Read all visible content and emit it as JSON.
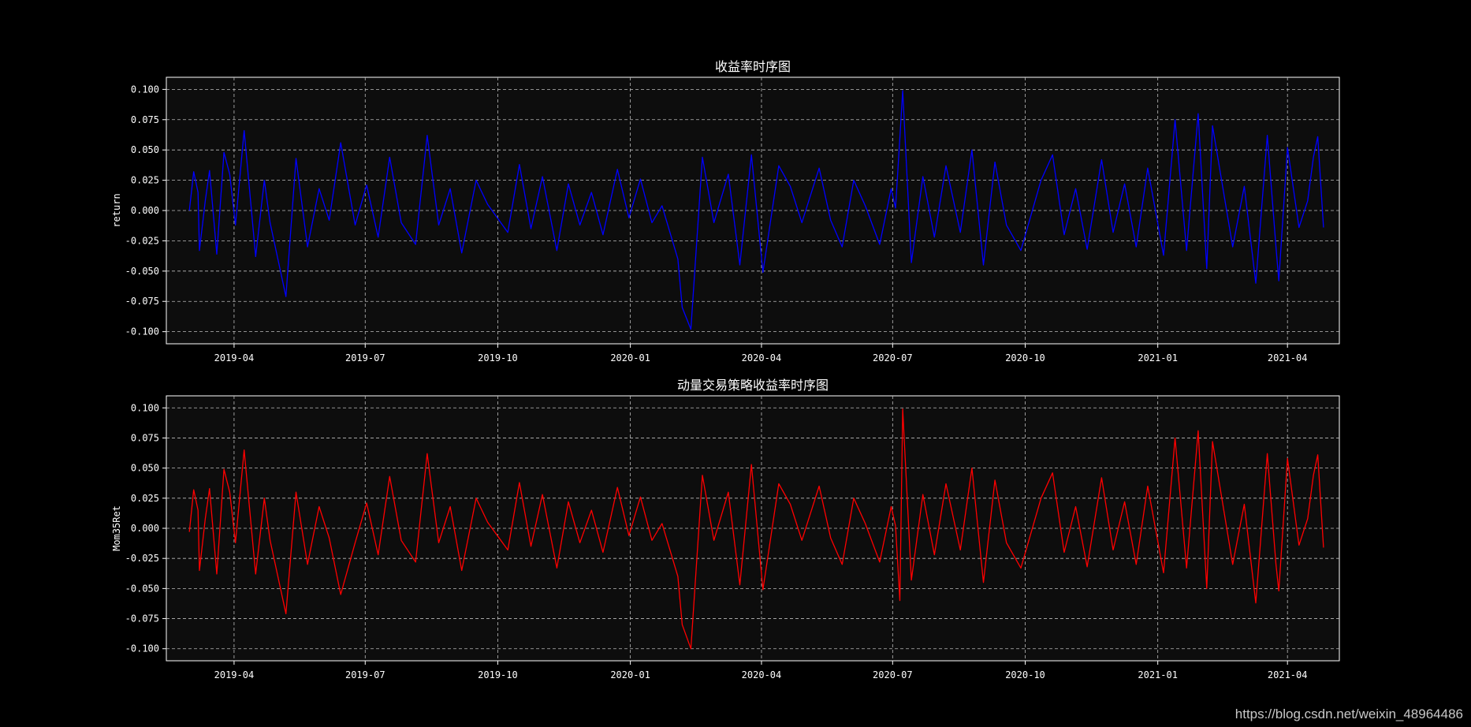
{
  "colors": {
    "background": "#000000",
    "plot_bg": "#0d0d0d",
    "text": "#ffffff",
    "grid": "#bdbdbd",
    "return": "#0000ff",
    "mom": "#ff0000"
  },
  "watermark": "https://blog.csdn.net/weixin_48964486",
  "chart_data": [
    {
      "type": "line",
      "title": "收益率时序图",
      "xlabel": "",
      "ylabel": "return",
      "ylim": [
        -0.11,
        0.11
      ],
      "yticks": [
        "0.100",
        "0.075",
        "0.050",
        "0.025",
        "0.000",
        "-0.025",
        "-0.050",
        "-0.075",
        "-0.100"
      ],
      "xticks": [
        "2019-04",
        "2019-07",
        "2019-10",
        "2020-01",
        "2020-04",
        "2020-07",
        "2020-10",
        "2021-01",
        "2021-04"
      ],
      "xlim": [
        "2019-02-13",
        "2021-05-07"
      ],
      "grid": true,
      "series": [
        {
          "color": "#0000ff",
          "x": [
            "2019-03-01",
            "2019-03-04",
            "2019-03-07",
            "2019-03-08",
            "2019-03-12",
            "2019-03-15",
            "2019-03-20",
            "2019-03-25",
            "2019-03-29",
            "2019-04-02",
            "2019-04-08",
            "2019-04-16",
            "2019-04-22",
            "2019-04-26",
            "2019-05-07",
            "2019-05-14",
            "2019-05-22",
            "2019-05-30",
            "2019-06-06",
            "2019-06-14",
            "2019-06-24",
            "2019-07-02",
            "2019-07-10",
            "2019-07-18",
            "2019-07-26",
            "2019-08-05",
            "2019-08-13",
            "2019-08-21",
            "2019-08-29",
            "2019-09-06",
            "2019-09-16",
            "2019-09-24",
            "2019-10-08",
            "2019-10-16",
            "2019-10-24",
            "2019-11-01",
            "2019-11-11",
            "2019-11-19",
            "2019-11-27",
            "2019-12-05",
            "2019-12-13",
            "2019-12-23",
            "2019-12-31",
            "2020-01-08",
            "2020-01-16",
            "2020-01-23",
            "2020-02-03",
            "2020-02-06",
            "2020-02-12",
            "2020-02-20",
            "2020-02-28",
            "2020-03-09",
            "2020-03-17",
            "2020-03-25",
            "2020-04-02",
            "2020-04-13",
            "2020-04-21",
            "2020-04-29",
            "2020-05-11",
            "2020-05-19",
            "2020-05-27",
            "2020-06-04",
            "2020-06-12",
            "2020-06-22",
            "2020-06-30",
            "2020-07-03",
            "2020-07-06",
            "2020-07-08",
            "2020-07-14",
            "2020-07-22",
            "2020-07-30",
            "2020-08-07",
            "2020-08-17",
            "2020-08-25",
            "2020-09-02",
            "2020-09-10",
            "2020-09-18",
            "2020-09-28",
            "2020-10-12",
            "2020-10-20",
            "2020-10-28",
            "2020-11-05",
            "2020-11-13",
            "2020-11-23",
            "2020-12-01",
            "2020-12-09",
            "2020-12-17",
            "2020-12-25",
            "2021-01-05",
            "2021-01-13",
            "2021-01-21",
            "2021-01-29",
            "2021-02-04",
            "2021-02-08",
            "2021-02-22",
            "2021-03-02",
            "2021-03-10",
            "2021-03-18",
            "2021-03-24",
            "2021-03-26",
            "2021-04-01",
            "2021-04-09",
            "2021-04-15",
            "2021-04-19",
            "2021-04-22",
            "2021-04-26"
          ],
          "y": [
            0.0,
            0.032,
            0.015,
            -0.033,
            0.008,
            0.033,
            -0.036,
            0.048,
            0.03,
            -0.012,
            0.066,
            -0.038,
            0.025,
            -0.01,
            -0.071,
            0.043,
            -0.03,
            0.018,
            -0.008,
            0.056,
            -0.012,
            0.021,
            -0.022,
            0.044,
            -0.01,
            -0.028,
            0.062,
            -0.012,
            0.018,
            -0.035,
            0.025,
            0.005,
            -0.018,
            0.038,
            -0.015,
            0.028,
            -0.033,
            0.022,
            -0.012,
            0.015,
            -0.02,
            0.034,
            -0.006,
            0.026,
            -0.01,
            0.004,
            -0.04,
            -0.08,
            -0.098,
            0.044,
            -0.01,
            0.03,
            -0.045,
            0.046,
            -0.051,
            0.037,
            0.02,
            -0.01,
            0.035,
            -0.008,
            -0.03,
            0.025,
            0.004,
            -0.028,
            0.018,
            0.002,
            0.06,
            0.099,
            -0.043,
            0.028,
            -0.022,
            0.037,
            -0.018,
            0.05,
            -0.045,
            0.04,
            -0.012,
            -0.033,
            0.025,
            0.046,
            -0.02,
            0.018,
            -0.032,
            0.042,
            -0.018,
            0.022,
            -0.03,
            0.035,
            -0.037,
            0.075,
            -0.033,
            0.08,
            -0.048,
            0.07,
            -0.03,
            0.02,
            -0.06,
            0.062,
            -0.03,
            -0.058,
            0.052,
            -0.014,
            0.008,
            0.044,
            0.061,
            -0.014
          ]
        }
      ]
    },
    {
      "type": "line",
      "title": "动量交易策略收益率时序图",
      "xlabel": "",
      "ylabel": "Mom35Ret",
      "ylim": [
        -0.11,
        0.11
      ],
      "yticks": [
        "0.100",
        "0.075",
        "0.050",
        "0.025",
        "0.000",
        "-0.025",
        "-0.050",
        "-0.075",
        "-0.100"
      ],
      "xticks": [
        "2019-04",
        "2019-07",
        "2019-10",
        "2020-01",
        "2020-04",
        "2020-07",
        "2020-10",
        "2021-01",
        "2021-04"
      ],
      "xlim": [
        "2019-02-13",
        "2021-05-07"
      ],
      "grid": true,
      "series": [
        {
          "color": "#ff0000",
          "x": [
            "2019-03-01",
            "2019-03-04",
            "2019-03-07",
            "2019-03-08",
            "2019-03-12",
            "2019-03-15",
            "2019-03-20",
            "2019-03-25",
            "2019-03-29",
            "2019-04-02",
            "2019-04-08",
            "2019-04-16",
            "2019-04-22",
            "2019-04-26",
            "2019-05-07",
            "2019-05-14",
            "2019-05-22",
            "2019-05-30",
            "2019-06-06",
            "2019-06-14",
            "2019-06-24",
            "2019-07-02",
            "2019-07-10",
            "2019-07-18",
            "2019-07-26",
            "2019-08-05",
            "2019-08-13",
            "2019-08-21",
            "2019-08-29",
            "2019-09-06",
            "2019-09-16",
            "2019-09-24",
            "2019-10-08",
            "2019-10-16",
            "2019-10-24",
            "2019-11-01",
            "2019-11-11",
            "2019-11-19",
            "2019-11-27",
            "2019-12-05",
            "2019-12-13",
            "2019-12-23",
            "2019-12-31",
            "2020-01-08",
            "2020-01-16",
            "2020-01-23",
            "2020-02-03",
            "2020-02-06",
            "2020-02-12",
            "2020-02-20",
            "2020-02-28",
            "2020-03-09",
            "2020-03-17",
            "2020-03-25",
            "2020-04-02",
            "2020-04-13",
            "2020-04-21",
            "2020-04-29",
            "2020-05-11",
            "2020-05-19",
            "2020-05-27",
            "2020-06-04",
            "2020-06-12",
            "2020-06-22",
            "2020-06-30",
            "2020-07-03",
            "2020-07-06",
            "2020-07-08",
            "2020-07-14",
            "2020-07-22",
            "2020-07-30",
            "2020-08-07",
            "2020-08-17",
            "2020-08-25",
            "2020-09-02",
            "2020-09-10",
            "2020-09-18",
            "2020-09-28",
            "2020-10-12",
            "2020-10-20",
            "2020-10-28",
            "2020-11-05",
            "2020-11-13",
            "2020-11-23",
            "2020-12-01",
            "2020-12-09",
            "2020-12-17",
            "2020-12-25",
            "2021-01-05",
            "2021-01-13",
            "2021-01-21",
            "2021-01-29",
            "2021-02-04",
            "2021-02-08",
            "2021-02-22",
            "2021-03-02",
            "2021-03-10",
            "2021-03-18",
            "2021-03-24",
            "2021-03-26",
            "2021-04-01",
            "2021-04-09",
            "2021-04-15",
            "2021-04-19",
            "2021-04-22",
            "2021-04-26"
          ],
          "y": [
            -0.003,
            0.032,
            0.015,
            -0.035,
            0.008,
            0.033,
            -0.038,
            0.049,
            0.03,
            -0.012,
            0.065,
            -0.038,
            0.025,
            -0.01,
            -0.071,
            0.03,
            -0.03,
            0.018,
            -0.008,
            -0.055,
            -0.012,
            0.021,
            -0.022,
            0.043,
            -0.01,
            -0.028,
            0.062,
            -0.012,
            0.018,
            -0.035,
            0.025,
            0.005,
            -0.018,
            0.038,
            -0.015,
            0.028,
            -0.033,
            0.022,
            -0.012,
            0.015,
            -0.02,
            0.034,
            -0.006,
            0.026,
            -0.01,
            0.004,
            -0.04,
            -0.08,
            -0.1,
            0.044,
            -0.01,
            0.03,
            -0.047,
            0.053,
            -0.051,
            0.037,
            0.02,
            -0.01,
            0.035,
            -0.008,
            -0.03,
            0.025,
            0.004,
            -0.028,
            0.018,
            0.002,
            -0.06,
            0.099,
            -0.043,
            0.028,
            -0.022,
            0.037,
            -0.018,
            0.05,
            -0.045,
            0.04,
            -0.012,
            -0.033,
            0.025,
            0.046,
            -0.02,
            0.018,
            -0.032,
            0.042,
            -0.018,
            0.022,
            -0.03,
            0.035,
            -0.037,
            0.075,
            -0.033,
            0.081,
            -0.05,
            0.072,
            -0.03,
            0.02,
            -0.062,
            0.062,
            -0.03,
            -0.052,
            0.058,
            -0.014,
            0.008,
            0.044,
            0.061,
            -0.016
          ]
        }
      ]
    }
  ]
}
